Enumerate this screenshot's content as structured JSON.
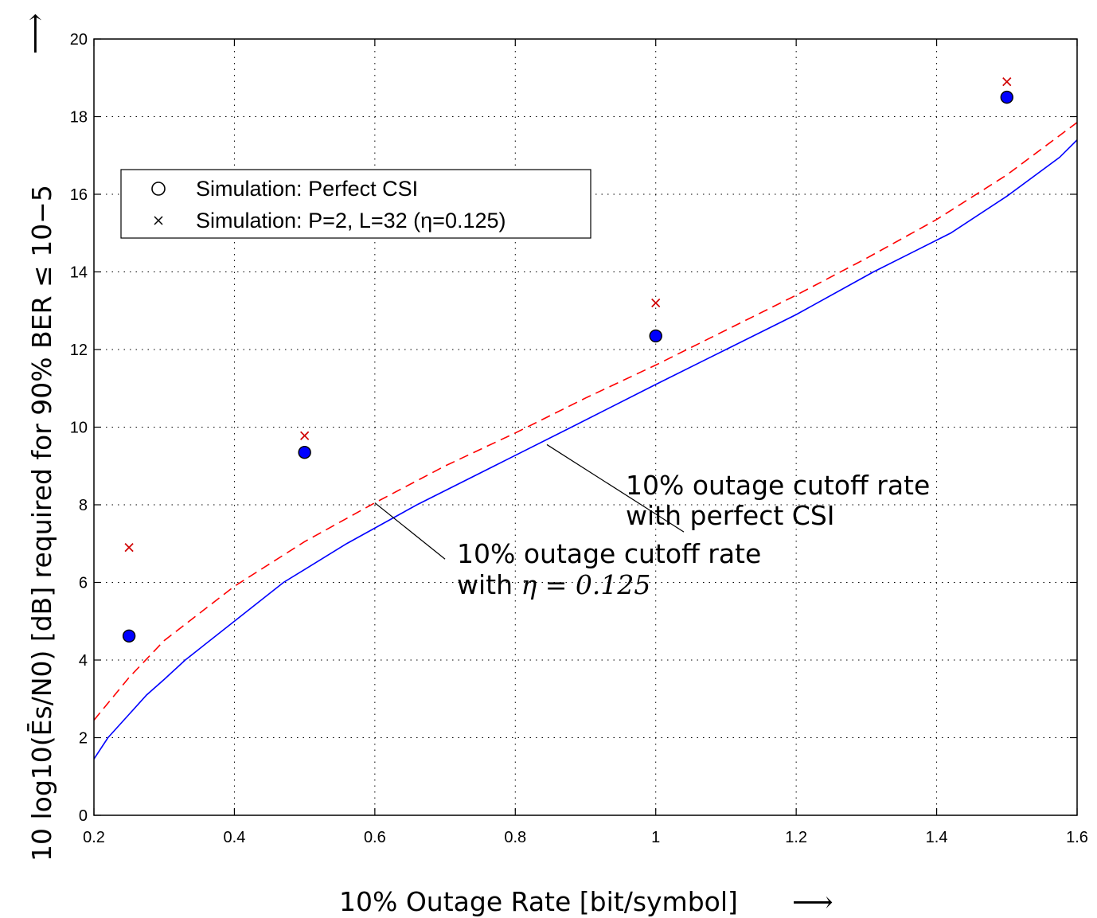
{
  "chart_data": {
    "type": "line",
    "xlabel": "10% Outage Rate [bit/symbol]",
    "ylabel": "10 log10(Ēs/N0) [dB] required for 90% BER ≤ 10−5",
    "xlim": [
      0.2,
      1.6
    ],
    "ylim": [
      0,
      20
    ],
    "xticks": [
      0.2,
      0.4,
      0.6,
      0.8,
      1,
      1.2,
      1.4,
      1.6
    ],
    "xtick_labels": [
      "0.2",
      "0.4",
      "0.6",
      "0.8",
      "1",
      "1.2",
      "1.4",
      "1.6"
    ],
    "yticks": [
      0,
      2,
      4,
      6,
      8,
      10,
      12,
      14,
      16,
      18,
      20
    ],
    "ytick_labels": [
      "0",
      "2",
      "4",
      "6",
      "8",
      "10",
      "12",
      "14",
      "16",
      "18",
      "20"
    ],
    "grid": true,
    "legend_position": "upper-left",
    "arrow_glyph": "⟶",
    "series": [
      {
        "name": "Simulation: Perfect CSI",
        "kind": "scatter",
        "marker": "circle",
        "color": "#0000ff",
        "x": [
          0.25,
          0.5,
          1.0,
          1.5
        ],
        "y": [
          4.62,
          9.35,
          12.35,
          18.5
        ]
      },
      {
        "name": "Simulation: P=2, L=32 (η=0.125)",
        "kind": "scatter",
        "marker": "x",
        "color": "#d00000",
        "x": [
          0.25,
          0.5,
          1.0,
          1.5
        ],
        "y": [
          6.9,
          9.78,
          13.2,
          18.9
        ]
      },
      {
        "kind": "line",
        "style": "solid",
        "color": "#0000ff",
        "x": [
          0.2,
          0.22,
          0.25,
          0.275,
          0.3,
          0.33,
          0.4,
          0.47,
          0.56,
          0.66,
          0.77,
          0.88,
          1.0,
          1.1,
          1.2,
          1.31,
          1.42,
          1.5,
          1.575,
          1.6
        ],
        "y": [
          1.45,
          2.0,
          2.6,
          3.1,
          3.5,
          4.0,
          5.0,
          6.0,
          7.0,
          8.0,
          9.0,
          10.0,
          11.1,
          12.0,
          12.9,
          14.0,
          15.0,
          15.95,
          16.95,
          17.4
        ]
      },
      {
        "kind": "line",
        "style": "dashed",
        "color": "#ff0000",
        "x": [
          0.2,
          0.25,
          0.3,
          0.35,
          0.4,
          0.5,
          0.6,
          0.7,
          0.8,
          0.9,
          1.0,
          1.1,
          1.2,
          1.3,
          1.4,
          1.5,
          1.6
        ],
        "y": [
          2.45,
          3.55,
          4.5,
          5.2,
          5.9,
          7.05,
          8.05,
          9.0,
          9.85,
          10.75,
          11.6,
          12.5,
          13.4,
          14.35,
          15.35,
          16.5,
          17.85
        ]
      }
    ],
    "annotations": [
      {
        "lines": [
          "10% outage cutoff rate",
          "with perfect CSI"
        ],
        "arrow_to": [
          0.845,
          9.55
        ],
        "arrow_from": [
          1.04,
          7.3
        ]
      },
      {
        "lines": [
          "10% outage cutoff rate",
          "with "
        ],
        "math": "η = 0.125",
        "arrow_to": [
          0.6,
          8.05
        ],
        "arrow_from": [
          0.7,
          6.6
        ]
      }
    ]
  }
}
